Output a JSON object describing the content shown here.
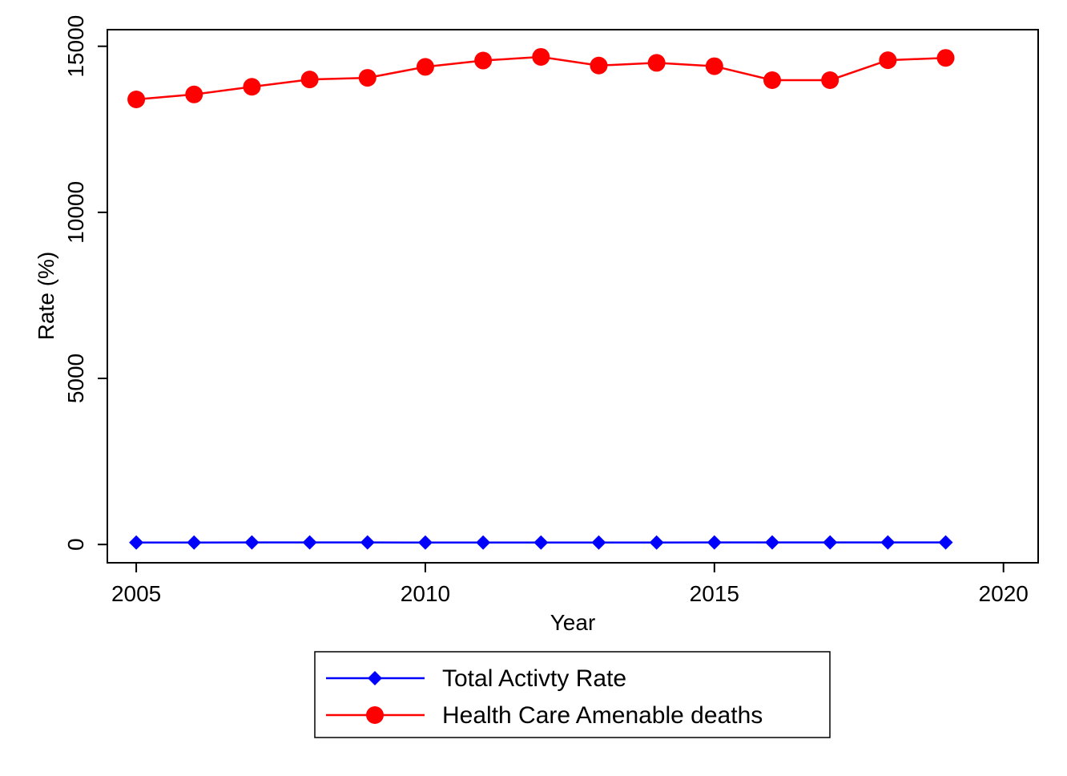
{
  "chart_data": {
    "type": "line",
    "title": "",
    "xlabel": "Year",
    "ylabel": "Rate (%)",
    "xlim": [
      2004.5,
      2020.6
    ],
    "ylim": [
      -550,
      15500
    ],
    "x_ticks": [
      2005,
      2010,
      2015,
      2020
    ],
    "y_ticks": [
      0,
      5000,
      10000,
      15000
    ],
    "x_tick_labels": [
      "2005",
      "2010",
      "2015",
      "2020"
    ],
    "y_tick_labels": [
      "0",
      "5000",
      "10000",
      "15000"
    ],
    "grid": false,
    "legend_position": "bottom",
    "x": [
      2005,
      2006,
      2007,
      2008,
      2009,
      2010,
      2011,
      2012,
      2013,
      2014,
      2015,
      2016,
      2017,
      2018,
      2019
    ],
    "series": [
      {
        "name": "Total Activty Rate",
        "color": "#0000ff",
        "marker": "diamond",
        "values": [
          60,
          60,
          61,
          61,
          61,
          60,
          60,
          60,
          60,
          60,
          61,
          61,
          62,
          62,
          62
        ]
      },
      {
        "name": "Health Care Amenable deaths",
        "color": "#ff0000",
        "marker": "circle",
        "values": [
          13400,
          13550,
          13780,
          14000,
          14050,
          14380,
          14570,
          14680,
          14420,
          14500,
          14400,
          13980,
          13980,
          14580,
          14650
        ]
      }
    ]
  }
}
